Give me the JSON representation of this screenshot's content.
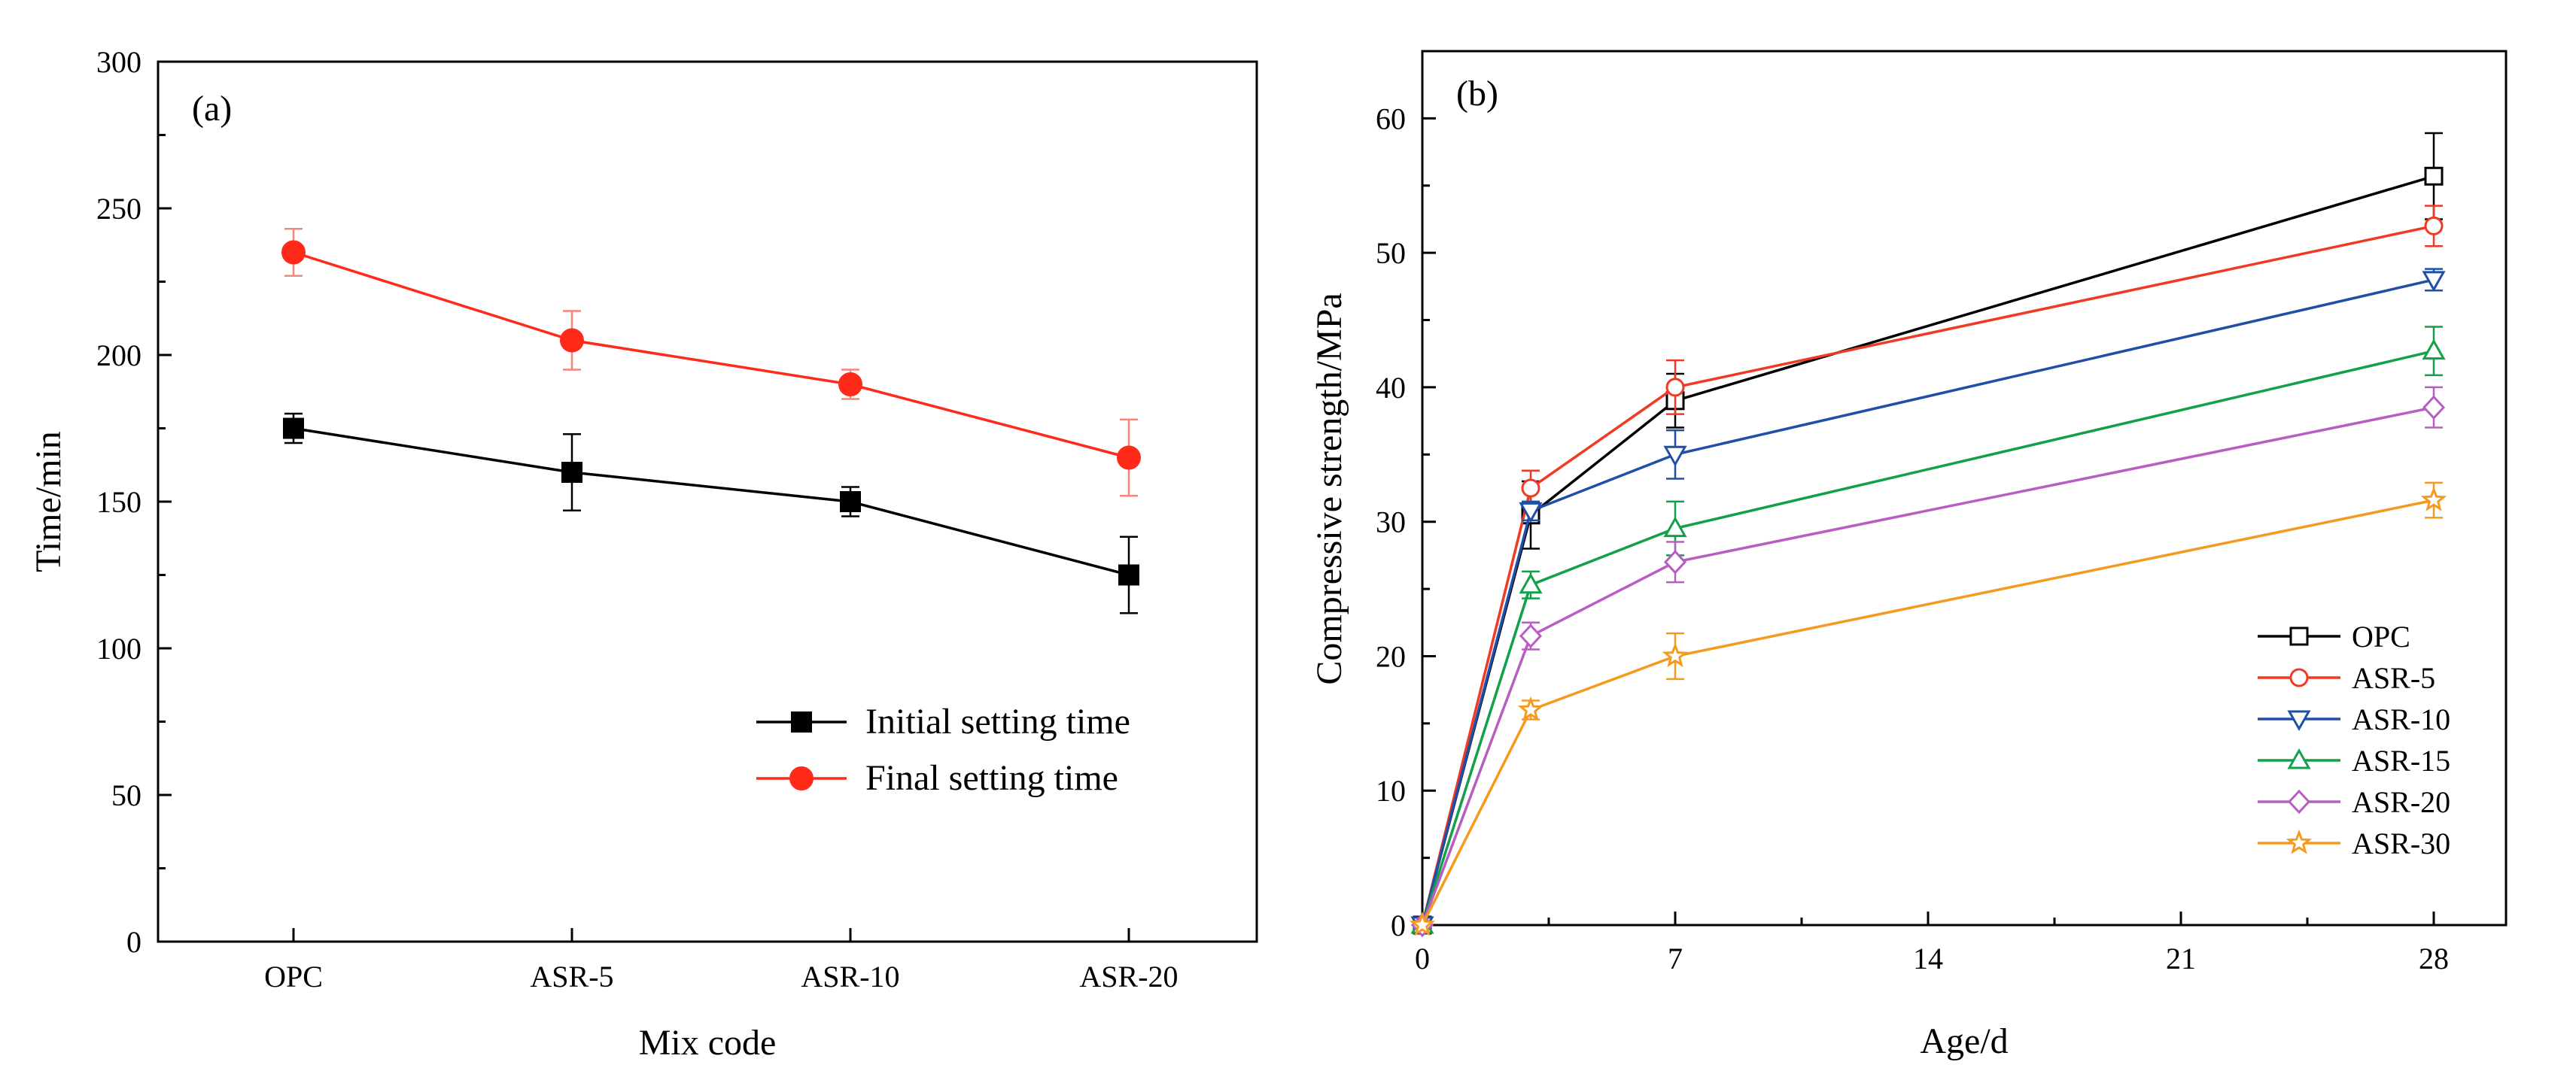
{
  "chart_data": [
    {
      "type": "line",
      "panel_label": "(a)",
      "xlabel": "Mix code",
      "ylabel": "Time/min",
      "categories": [
        "OPC",
        "ASR-5",
        "ASR-10",
        "ASR-20"
      ],
      "ylim": [
        0,
        300
      ],
      "yticks": [
        0,
        50,
        100,
        150,
        200,
        250,
        300
      ],
      "legend_position": "bottom-right",
      "series": [
        {
          "name": "Initial setting time",
          "color": "#000000",
          "marker": "square-filled",
          "values": [
            175,
            160,
            150,
            125
          ],
          "errors": [
            5,
            13,
            5,
            13
          ]
        },
        {
          "name": "Final setting time",
          "color": "#ff2a1a",
          "marker": "circle-filled",
          "values": [
            235,
            205,
            190,
            165
          ],
          "errors": [
            8,
            10,
            5,
            13
          ]
        }
      ]
    },
    {
      "type": "line",
      "panel_label": "(b)",
      "xlabel": "Age/d",
      "ylabel": "Compressive strength/MPa",
      "x": [
        0,
        3,
        7,
        28
      ],
      "xlim": [
        0,
        30
      ],
      "xticks": [
        0,
        7,
        14,
        21,
        28
      ],
      "ylim": [
        0,
        65
      ],
      "yticks": [
        0,
        10,
        20,
        30,
        40,
        50,
        60
      ],
      "legend_position": "bottom-right",
      "series": [
        {
          "name": "OPC",
          "color": "#000000",
          "marker": "square-open",
          "values": [
            0,
            30.5,
            39,
            55.7
          ],
          "errors": [
            0,
            2.5,
            2,
            3.2
          ]
        },
        {
          "name": "ASR-5",
          "color": "#f03a26",
          "marker": "circle-open",
          "values": [
            0,
            32.5,
            40,
            52
          ],
          "errors": [
            0,
            1.3,
            2,
            1.5
          ]
        },
        {
          "name": "ASR-10",
          "color": "#1f4fa6",
          "marker": "triangle-down-open",
          "values": [
            0,
            30.8,
            35,
            48
          ],
          "errors": [
            0,
            0.7,
            1.8,
            0.8
          ]
        },
        {
          "name": "ASR-15",
          "color": "#12a04a",
          "marker": "triangle-up-open",
          "values": [
            0,
            25.3,
            29.5,
            42.7
          ],
          "errors": [
            0,
            1,
            2,
            1.8
          ]
        },
        {
          "name": "ASR-20",
          "color": "#b85ec2",
          "marker": "diamond-open",
          "values": [
            0,
            21.5,
            27,
            38.5
          ],
          "errors": [
            0,
            1,
            1.5,
            1.5
          ]
        },
        {
          "name": "ASR-30",
          "color": "#f59a20",
          "marker": "star-open",
          "values": [
            0,
            16,
            20,
            31.6
          ],
          "errors": [
            0,
            0.7,
            1.7,
            1.3
          ]
        }
      ]
    }
  ]
}
